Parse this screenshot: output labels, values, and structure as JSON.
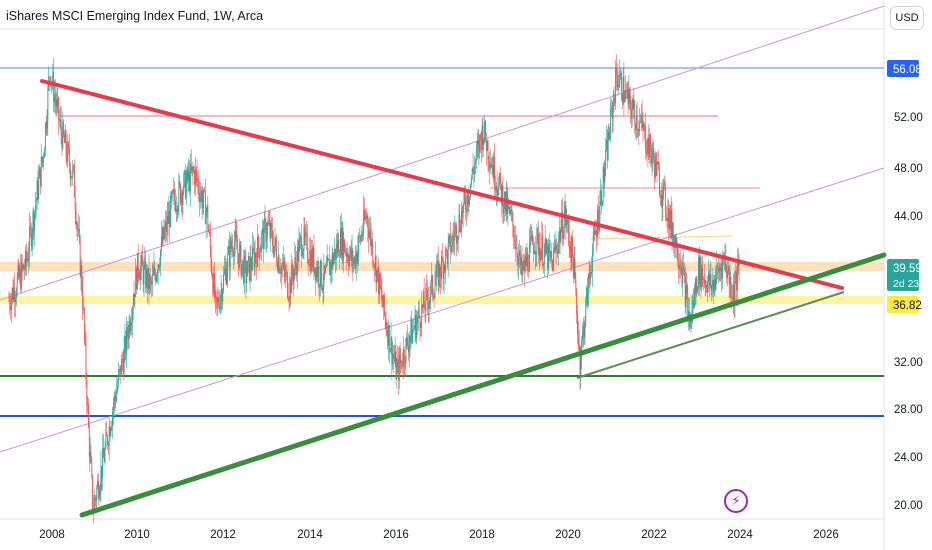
{
  "header": {
    "title": "iShares MSCI Emerging Index Fund, 1W, Arca",
    "currency_button": "USD"
  },
  "flash_icon_name": "lightning-icon",
  "chart_data": {
    "type": "candlestick",
    "title": "iShares MSCI Emerging Index Fund, 1W, Arca",
    "x_axis": {
      "ticks": [
        "2008",
        "2010",
        "2012",
        "2014",
        "2016",
        "2018",
        "2020",
        "2022",
        "2024",
        "2026"
      ]
    },
    "y_axis": {
      "ticks": [
        "56.08",
        "52.00",
        "48.00",
        "44.00",
        "39.59",
        "36.82",
        "32.00",
        "28.00",
        "24.00",
        "20.00"
      ],
      "range": [
        19.0,
        62.0
      ]
    },
    "price_labels": [
      {
        "text": "56.08",
        "value": 56.08,
        "color": "#2962ff"
      },
      {
        "text": "39.59",
        "value": 39.59,
        "color": "#26a69a",
        "subtext": "2d 23h"
      },
      {
        "text": "36.82",
        "value": 36.82,
        "color": "#ffeb3b"
      }
    ],
    "price_path": [
      [
        2007.0,
        37.0
      ],
      [
        2007.4,
        40.0
      ],
      [
        2007.8,
        49.0
      ],
      [
        2007.95,
        56.0
      ],
      [
        2008.2,
        51.0
      ],
      [
        2008.5,
        47.0
      ],
      [
        2008.7,
        38.0
      ],
      [
        2008.85,
        26.0
      ],
      [
        2008.95,
        20.0
      ],
      [
        2009.2,
        24.0
      ],
      [
        2009.4,
        28.0
      ],
      [
        2009.7,
        33.0
      ],
      [
        2010.0,
        40.0
      ],
      [
        2010.3,
        38.0
      ],
      [
        2010.8,
        45.0
      ],
      [
        2011.3,
        47.5
      ],
      [
        2011.6,
        44.0
      ],
      [
        2011.8,
        36.0
      ],
      [
        2012.2,
        42.0
      ],
      [
        2012.5,
        39.0
      ],
      [
        2013.0,
        43.0
      ],
      [
        2013.5,
        38.0
      ],
      [
        2013.8,
        42.0
      ],
      [
        2014.3,
        38.5
      ],
      [
        2014.7,
        42.0
      ],
      [
        2015.0,
        40.0
      ],
      [
        2015.3,
        44.0
      ],
      [
        2015.7,
        36.0
      ],
      [
        2016.0,
        31.0
      ],
      [
        2016.3,
        34.0
      ],
      [
        2016.7,
        37.0
      ],
      [
        2017.2,
        41.0
      ],
      [
        2017.6,
        45.0
      ],
      [
        2018.0,
        51.0
      ],
      [
        2018.3,
        47.0
      ],
      [
        2018.7,
        43.0
      ],
      [
        2018.9,
        39.0
      ],
      [
        2019.2,
        42.0
      ],
      [
        2019.6,
        40.0
      ],
      [
        2019.9,
        44.0
      ],
      [
        2020.1,
        40.0
      ],
      [
        2020.25,
        32.0
      ],
      [
        2020.5,
        40.0
      ],
      [
        2020.8,
        47.0
      ],
      [
        2021.1,
        55.5
      ],
      [
        2021.4,
        53.0
      ],
      [
        2021.7,
        51.0
      ],
      [
        2022.0,
        48.0
      ],
      [
        2022.3,
        44.0
      ],
      [
        2022.6,
        40.0
      ],
      [
        2022.8,
        35.0
      ],
      [
        2023.0,
        39.5
      ],
      [
        2023.3,
        38.0
      ],
      [
        2023.6,
        40.5
      ],
      [
        2023.8,
        37.5
      ],
      [
        2023.95,
        39.59
      ]
    ]
  }
}
